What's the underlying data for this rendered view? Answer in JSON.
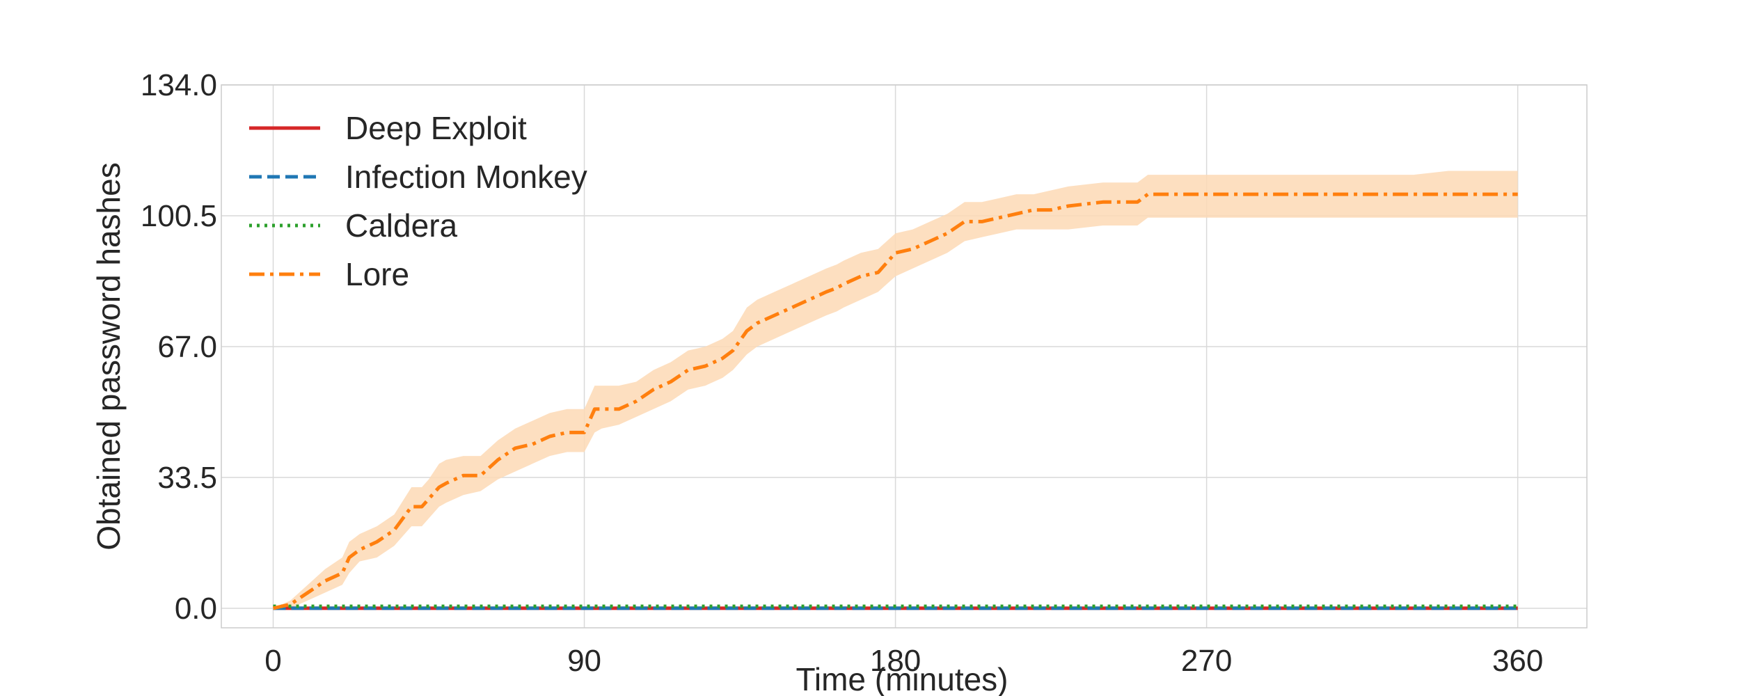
{
  "chart_data": {
    "type": "line",
    "title": "",
    "xlabel": "Time (minutes)",
    "ylabel": "Obtained password hashes",
    "xlim": [
      -15,
      380
    ],
    "ylim": [
      -5,
      134
    ],
    "xticks": [
      0,
      90,
      180,
      270,
      360
    ],
    "yticks": [
      0.0,
      33.5,
      67.0,
      100.5,
      134.0
    ],
    "xtick_labels": [
      "0",
      "90",
      "180",
      "270",
      "360"
    ],
    "ytick_labels": [
      "0.0",
      "33.5",
      "67.0",
      "100.5",
      "134.0"
    ],
    "grid": true,
    "legend_position": "top-left",
    "series": [
      {
        "name": "Deep Exploit",
        "color": "#d62728",
        "style": "solid",
        "x": [
          0,
          360
        ],
        "y": [
          0,
          0
        ]
      },
      {
        "name": "Infection Monkey",
        "color": "#1f77b4",
        "style": "dashed",
        "x": [
          0,
          360
        ],
        "y": [
          0,
          0
        ]
      },
      {
        "name": "Caldera",
        "color": "#2ca02c",
        "style": "dotted",
        "x": [
          0,
          360
        ],
        "y": [
          0.5,
          0.5
        ]
      },
      {
        "name": "Lore",
        "color": "#ff7f0e",
        "style": "dashdot",
        "band_color": "#fdd9b5",
        "x": [
          0,
          5,
          10,
          15,
          20,
          22,
          25,
          30,
          35,
          40,
          43,
          45,
          48,
          50,
          55,
          60,
          65,
          70,
          75,
          80,
          85,
          90,
          93,
          95,
          100,
          105,
          110,
          115,
          120,
          125,
          130,
          133,
          137,
          140,
          145,
          150,
          155,
          160,
          163,
          165,
          170,
          175,
          180,
          185,
          190,
          195,
          200,
          205,
          210,
          215,
          220,
          225,
          230,
          240,
          250,
          253,
          260,
          270,
          280,
          290,
          300,
          310,
          320,
          330,
          340,
          350,
          360
        ],
        "y": [
          0,
          1,
          4,
          7,
          9,
          13,
          15,
          17,
          20,
          26,
          26,
          28,
          31,
          32,
          34,
          34,
          38,
          41,
          42,
          44,
          45,
          45,
          51,
          51,
          51,
          53,
          56,
          58,
          61,
          62,
          64,
          66,
          71,
          73,
          75,
          77,
          79,
          81,
          82,
          83,
          85,
          86,
          91,
          92,
          94,
          96,
          99,
          99,
          100,
          101,
          102,
          102,
          103,
          104,
          104,
          106,
          106,
          106,
          106,
          106,
          106,
          106,
          106,
          106,
          106,
          106,
          106
        ],
        "lower": [
          0,
          0,
          2,
          4,
          6,
          9,
          12,
          13,
          16,
          21,
          21,
          23,
          26,
          27,
          29,
          30,
          33,
          35,
          37,
          39,
          40,
          40,
          45,
          46,
          47,
          49,
          51,
          53,
          56,
          57,
          59,
          61,
          65,
          67,
          69,
          71,
          73,
          75,
          76,
          77,
          79,
          81,
          85,
          87,
          89,
          91,
          94,
          95,
          96,
          97,
          97,
          97,
          97,
          98,
          98,
          100,
          100,
          100,
          100,
          100,
          100,
          100,
          100,
          100,
          100,
          100,
          100
        ],
        "upper": [
          0,
          2,
          6,
          10,
          13,
          17,
          19,
          21,
          24,
          31,
          31,
          33,
          37,
          38,
          39,
          39,
          43,
          46,
          48,
          50,
          51,
          51,
          57,
          57,
          57,
          58,
          61,
          63,
          66,
          67,
          69,
          71,
          77,
          79,
          81,
          83,
          85,
          87,
          88,
          89,
          91,
          92,
          96,
          97,
          99,
          101,
          104,
          104,
          105,
          106,
          106,
          107,
          108,
          109,
          109,
          111,
          111,
          111,
          111,
          111,
          111,
          111,
          111,
          111,
          112,
          112,
          112
        ]
      }
    ]
  }
}
